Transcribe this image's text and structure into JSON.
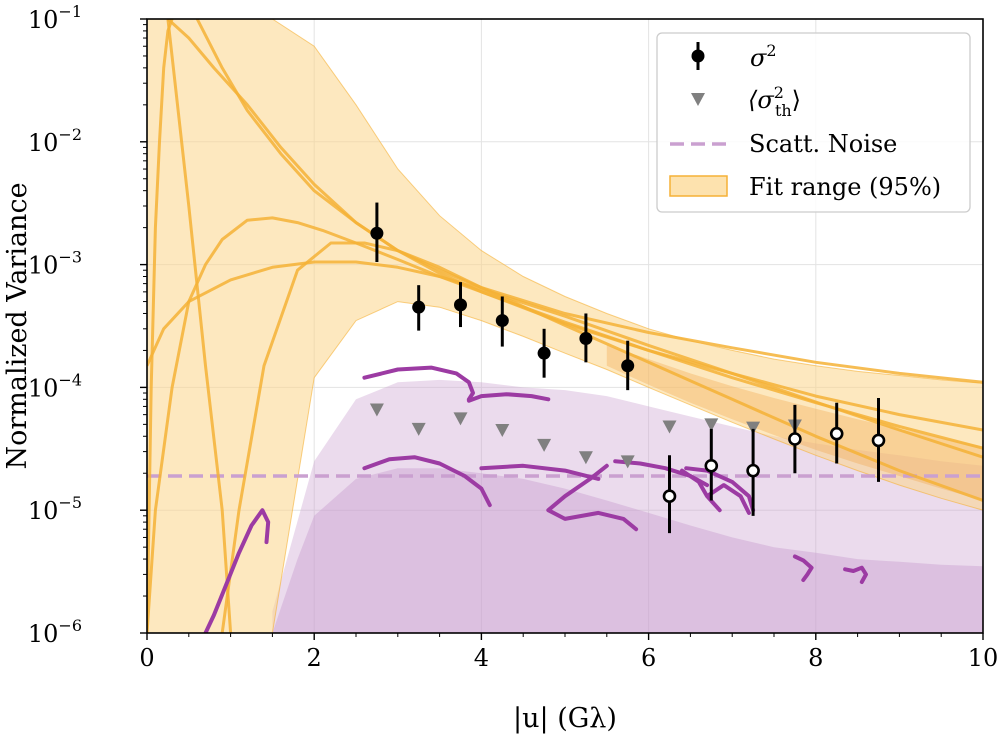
{
  "chart_data": {
    "type": "scatter",
    "xlabel": "|u| (Gλ)",
    "ylabel": "Normalized Variance",
    "xlim": [
      0,
      10
    ],
    "ylim": [
      1e-06,
      0.1
    ],
    "yscale": "log",
    "x_ticks": [
      "0",
      "2",
      "4",
      "6",
      "8",
      "10"
    ],
    "y_ticks": [
      {
        "base": "10",
        "exp": "−6"
      },
      {
        "base": "10",
        "exp": "−5"
      },
      {
        "base": "10",
        "exp": "−4"
      },
      {
        "base": "10",
        "exp": "−3"
      },
      {
        "base": "10",
        "exp": "−2"
      },
      {
        "base": "10",
        "exp": "−1"
      }
    ],
    "grid": true,
    "legend_position": "top-right",
    "legend": {
      "sigma2": "σ",
      "sigma2_sup": "2",
      "sigma_th_open": "⟨σ",
      "sigma_th_sup": "2",
      "sigma_th_sub": "th",
      "sigma_th_close": "⟩",
      "scatt_noise": "Scatt. Noise",
      "fit_range": "Fit range (95%)"
    },
    "colors": {
      "fit": "#f5b136",
      "fit_band": "#fcd58b",
      "noise": "#9c3ba3",
      "noise_band": "#caa0d0",
      "theory": "#808080",
      "points": "#000000"
    },
    "sigma2_points": [
      {
        "x": 2.75,
        "y": 0.0018,
        "lo": 0.00105,
        "hi": 0.0032,
        "filled": true
      },
      {
        "x": 3.25,
        "y": 0.00045,
        "lo": 0.00029,
        "hi": 0.00068,
        "filled": true
      },
      {
        "x": 3.75,
        "y": 0.00047,
        "lo": 0.00031,
        "hi": 0.00072,
        "filled": true
      },
      {
        "x": 4.25,
        "y": 0.00035,
        "lo": 0.000215,
        "hi": 0.00055,
        "filled": true
      },
      {
        "x": 4.75,
        "y": 0.00019,
        "lo": 0.00012,
        "hi": 0.0003,
        "filled": true
      },
      {
        "x": 5.25,
        "y": 0.00025,
        "lo": 0.00016,
        "hi": 0.0004,
        "filled": true
      },
      {
        "x": 5.75,
        "y": 0.00015,
        "lo": 9.5e-05,
        "hi": 0.00024,
        "filled": true
      },
      {
        "x": 6.25,
        "y": 1.3e-05,
        "lo": 6.5e-06,
        "hi": 2.8e-05,
        "filled": false
      },
      {
        "x": 6.75,
        "y": 2.3e-05,
        "lo": 1.2e-05,
        "hi": 4.6e-05,
        "filled": false
      },
      {
        "x": 7.25,
        "y": 2.1e-05,
        "lo": 9e-06,
        "hi": 4.6e-05,
        "filled": false
      },
      {
        "x": 7.75,
        "y": 3.8e-05,
        "lo": 2e-05,
        "hi": 7.2e-05,
        "filled": false
      },
      {
        "x": 8.25,
        "y": 4.2e-05,
        "lo": 2.4e-05,
        "hi": 7.5e-05,
        "filled": false
      },
      {
        "x": 8.75,
        "y": 3.7e-05,
        "lo": 1.7e-05,
        "hi": 8.2e-05,
        "filled": false
      }
    ],
    "sigma_th_points": [
      {
        "x": 2.75,
        "y": 6.6e-05
      },
      {
        "x": 3.25,
        "y": 4.6e-05
      },
      {
        "x": 3.75,
        "y": 5.6e-05
      },
      {
        "x": 4.25,
        "y": 4.5e-05
      },
      {
        "x": 4.75,
        "y": 3.4e-05
      },
      {
        "x": 5.25,
        "y": 2.7e-05
      },
      {
        "x": 5.75,
        "y": 2.5e-05
      },
      {
        "x": 6.25,
        "y": 4.8e-05
      },
      {
        "x": 6.75,
        "y": 5e-05
      },
      {
        "x": 7.25,
        "y": 4.7e-05
      },
      {
        "x": 7.75,
        "y": 4.9e-05
      }
    ],
    "scatt_noise_level": 1.9e-05,
    "fit_band": {
      "x": [
        0.0,
        0.5,
        1.0,
        1.5,
        2.0,
        2.5,
        3.0,
        3.5,
        4.0,
        4.5,
        5.0,
        5.5,
        6.0,
        6.5,
        7.0,
        7.5,
        8.0,
        8.5,
        9.0,
        9.5,
        10.0
      ],
      "upper": [
        0.1,
        0.1,
        0.1,
        0.1,
        0.06,
        0.02,
        0.006,
        0.0025,
        0.0013,
        0.0008,
        0.00055,
        0.0004,
        0.0003,
        0.00024,
        0.0002,
        0.00017,
        0.00015,
        0.000135,
        0.000125,
        0.000115,
        0.000108
      ],
      "lower": [
        1e-06,
        1e-06,
        1e-06,
        1e-06,
        0.00012,
        0.00035,
        0.0005,
        0.00045,
        0.00035,
        0.00026,
        0.00019,
        0.00014,
        0.0001,
        7.2e-05,
        5.2e-05,
        3.8e-05,
        2.8e-05,
        2.1e-05,
        1.6e-05,
        1.25e-05,
        1e-05
      ]
    },
    "fit_inner_band": {
      "x": [
        5.5,
        6.0,
        6.5,
        7.0,
        7.5,
        8.0,
        8.5,
        9.0,
        9.5,
        10.0
      ],
      "upper": [
        0.00022,
        0.00017,
        0.00013,
        0.000102,
        8.2e-05,
        6.7e-05,
        5.5e-05,
        4.6e-05,
        3.9e-05,
        3.3e-05
      ],
      "lower": [
        0.00015,
        0.000105,
        7.5e-05,
        5.5e-05,
        4.1e-05,
        3.1e-05,
        2.4e-05,
        1.9e-05,
        1.5e-05,
        1.2e-05
      ]
    },
    "fit_curves": [
      {
        "x": [
          0.25,
          0.5,
          0.8,
          1.2,
          1.6,
          2.0,
          2.5,
          3.0,
          3.5,
          4.0,
          5.0,
          6.0,
          7.0,
          8.0,
          9.0,
          10.0
        ],
        "y": [
          0.1,
          0.07,
          0.04,
          0.02,
          0.009,
          0.0045,
          0.0022,
          0.0013,
          0.0009,
          0.00065,
          0.0004,
          0.00028,
          0.00021,
          0.00016,
          0.00013,
          0.00011
        ]
      },
      {
        "x": [
          0.6,
          0.9,
          1.2,
          1.6,
          2.0,
          2.5,
          3.0,
          3.5,
          4.0,
          5.0,
          6.0,
          7.0,
          8.0,
          9.0,
          10.0
        ],
        "y": [
          0.1,
          0.04,
          0.018,
          0.008,
          0.004,
          0.0022,
          0.0013,
          0.00085,
          0.0006,
          0.00033,
          0.0002,
          0.00013,
          8.5e-05,
          6e-05,
          4.5e-05
        ]
      },
      {
        "x": [
          0.0,
          0.2,
          0.5,
          1.0,
          1.5,
          2.0,
          2.5,
          3.0,
          3.5,
          4.0,
          5.0,
          6.0,
          7.0,
          8.0,
          9.0,
          10.0
        ],
        "y": [
          0.00015,
          0.0003,
          0.0005,
          0.00075,
          0.00095,
          0.00105,
          0.00105,
          0.00095,
          0.0008,
          0.00063,
          0.00038,
          0.00022,
          0.00013,
          7.6e-05,
          4.5e-05,
          2.7e-05
        ]
      },
      {
        "x": [
          0.9,
          1.1,
          1.4,
          1.8,
          2.2,
          2.6,
          3.0,
          3.5,
          4.0,
          5.0,
          6.0,
          7.0,
          8.0,
          9.0,
          10.0
        ],
        "y": [
          1e-06,
          1e-05,
          0.00015,
          0.0009,
          0.0015,
          0.0015,
          0.0013,
          0.00095,
          0.00065,
          0.00032,
          0.00016,
          8e-05,
          4e-05,
          2.1e-05,
          1.2e-05
        ]
      },
      {
        "x": [
          0.0,
          0.1,
          0.3,
          0.5,
          0.7,
          0.9,
          1.2,
          1.5,
          1.8,
          2.1,
          2.5,
          3.0,
          3.5,
          4.0,
          5.0,
          6.0,
          7.0,
          8.0,
          9.0,
          10.0
        ],
        "y": [
          1e-06,
          1e-05,
          0.0001,
          0.0005,
          0.001,
          0.0016,
          0.0023,
          0.0024,
          0.0022,
          0.0019,
          0.0015,
          0.0011,
          0.0008,
          0.0006,
          0.00034,
          0.0002,
          0.00012,
          7.5e-05,
          4.8e-05,
          3.2e-05
        ]
      },
      {
        "x": [
          0.0,
          0.05,
          0.1,
          0.15,
          0.2,
          0.25,
          0.3
        ],
        "y": [
          1e-06,
          0.0001,
          0.002,
          0.01,
          0.04,
          0.08,
          0.1
        ]
      },
      {
        "x": [
          0.25,
          0.5,
          0.7,
          0.9,
          1.0
        ],
        "y": [
          0.1,
          0.003,
          0.00015,
          1e-05,
          1e-06
        ]
      }
    ],
    "noise_band": {
      "x": [
        1.5,
        2.0,
        2.5,
        3.0,
        3.5,
        4.0,
        4.5,
        5.0,
        5.5,
        6.0,
        6.5,
        7.0,
        7.5,
        8.0,
        8.5,
        9.0,
        9.5,
        10.0
      ],
      "upper": [
        1.5e-06,
        2.5e-05,
        8e-05,
        0.00011,
        0.000115,
        0.00011,
        0.0001,
        9.5e-05,
        8.5e-05,
        7e-05,
        5.8e-05,
        4.8e-05,
        4e-05,
        3.5e-05,
        3.1e-05,
        2.8e-05,
        2.5e-05,
        2.3e-05
      ],
      "lower": [
        1e-06,
        1e-06,
        1e-06,
        1e-06,
        1e-06,
        1e-06,
        1e-06,
        1e-06,
        1e-06,
        1e-06,
        1e-06,
        1e-06,
        1e-06,
        1e-06,
        1e-06,
        1e-06,
        1e-06,
        1e-06
      ]
    },
    "noise_inner_band": {
      "x": [
        1.5,
        1.8,
        2.0,
        2.5,
        3.0,
        3.5,
        4.0,
        4.5,
        5.0,
        5.5,
        6.0,
        6.5,
        7.0,
        7.5,
        8.0,
        8.5,
        9.0,
        9.5,
        10.0
      ],
      "upper": [
        1e-06,
        4e-06,
        9e-06,
        1.8e-05,
        2.2e-05,
        2.2e-05,
        2e-05,
        1.8e-05,
        1.5e-05,
        1.2e-05,
        9.5e-06,
        7.5e-06,
        6e-06,
        5e-06,
        4.5e-06,
        4e-06,
        3.8e-06,
        3.6e-06,
        3.5e-06
      ]
    },
    "noise_curves": [
      {
        "x": [
          0.7,
          0.8,
          0.95,
          1.1,
          1.25,
          1.38,
          1.45,
          1.43
        ],
        "y": [
          1e-06,
          1.4e-06,
          2.5e-06,
          4.5e-06,
          7.5e-06,
          1e-05,
          8e-06,
          5.5e-06
        ]
      },
      {
        "x": [
          2.6,
          3.0,
          3.4,
          3.7,
          3.85,
          3.9,
          3.85
        ],
        "y": [
          0.00012,
          0.00014,
          0.000145,
          0.00013,
          0.00011,
          9e-05,
          8e-05
        ]
      },
      {
        "x": [
          3.85,
          4.0,
          4.3,
          4.6,
          4.8
        ],
        "y": [
          7.8e-05,
          8.5e-05,
          8.8e-05,
          8.5e-05,
          8e-05
        ]
      },
      {
        "x": [
          2.6,
          2.9,
          3.2,
          3.5,
          3.8,
          4.0,
          4.1
        ],
        "y": [
          2.2e-05,
          2.6e-05,
          2.7e-05,
          2.4e-05,
          1.9e-05,
          1.5e-05,
          1.1e-05
        ]
      },
      {
        "x": [
          4.0,
          4.5,
          5.0,
          5.4
        ],
        "y": [
          2.2e-05,
          2.3e-05,
          2.1e-05,
          1.8e-05
        ]
      },
      {
        "x": [
          5.5,
          5.3,
          5.0,
          4.8,
          5.0,
          5.4,
          5.7,
          5.85
        ],
        "y": [
          2.3e-05,
          1.8e-05,
          1.3e-05,
          1e-05,
          8.5e-06,
          9.5e-06,
          8.5e-06,
          7e-06
        ]
      },
      {
        "x": [
          5.6,
          5.9,
          6.2,
          6.5,
          6.7
        ],
        "y": [
          2.5e-05,
          2.4e-05,
          2.2e-05,
          1.9e-05,
          1.6e-05
        ]
      },
      {
        "x": [
          6.4,
          6.6,
          6.7,
          6.85,
          6.7,
          6.9,
          7.1,
          7.2
        ],
        "y": [
          2.1e-05,
          1.7e-05,
          1.3e-05,
          1e-05,
          1.3e-05,
          1.6e-05,
          1.3e-05,
          9.5e-06
        ]
      },
      {
        "x": [
          6.45,
          6.7,
          7.0,
          7.2,
          7.25
        ],
        "y": [
          2.2e-05,
          2.1e-05,
          1.7e-05,
          1.3e-05,
          1e-05
        ]
      },
      {
        "x": [
          7.75,
          7.85,
          7.95,
          7.9,
          7.85
        ],
        "y": [
          4.2e-06,
          3.9e-06,
          3.4e-06,
          3e-06,
          2.7e-06
        ]
      },
      {
        "x": [
          8.35,
          8.45,
          8.55,
          8.6,
          8.55
        ],
        "y": [
          3.3e-06,
          3.2e-06,
          3.4e-06,
          3e-06,
          2.6e-06
        ]
      }
    ]
  }
}
